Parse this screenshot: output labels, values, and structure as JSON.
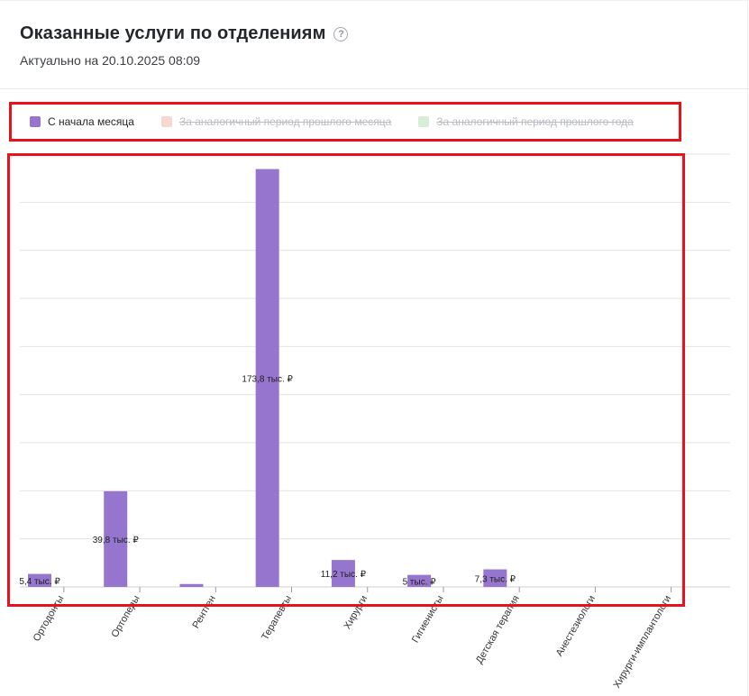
{
  "header": {
    "title": "Оказанные услуги по отделениям",
    "help_glyph": "?",
    "subtitle": "Актуально на 20.10.2025 08:09"
  },
  "legend": [
    {
      "label": "С начала месяца",
      "color": "#9575cd",
      "active": true
    },
    {
      "label": "За аналогичный период прошлого месяца",
      "color": "#f8d7d0",
      "active": false
    },
    {
      "label": "За аналогичный период прошлого года",
      "color": "#d6eed6",
      "active": false
    }
  ],
  "chart_data": {
    "type": "bar",
    "categories": [
      "Ортодонты",
      "Ортопеды",
      "Рентген",
      "Терапевты",
      "Хирурги",
      "Гигиенисты",
      "Детская терапия",
      "Анестезиологи",
      "Хирурги-имплантологи"
    ],
    "series": [
      {
        "name": "С начала месяца",
        "color": "#9575cd",
        "values": [
          5.4,
          39.8,
          1.2,
          173.8,
          11.2,
          5,
          7.3,
          0,
          0
        ],
        "labels": [
          "5,4 тыс. ₽",
          "39,8 тыс. ₽",
          "",
          "173,8 тыс. ₽",
          "11,2 тыс. ₽",
          "5 тыс. ₽",
          "7,3 тыс. ₽",
          "",
          ""
        ]
      }
    ],
    "ylim": [
      0,
      180
    ],
    "grid": true
  }
}
